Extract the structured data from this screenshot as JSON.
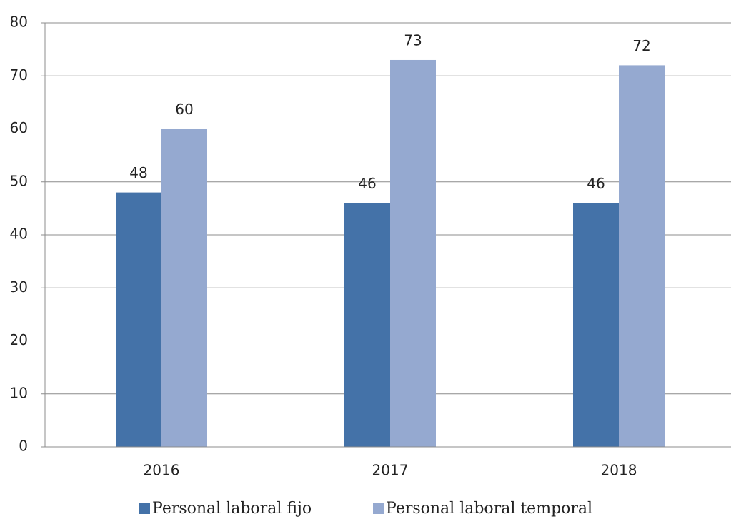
{
  "chart_data": {
    "type": "bar",
    "categories": [
      "2016",
      "2017",
      "2018"
    ],
    "series": [
      {
        "name": "Personal laboral fijo",
        "color": "#4472a8",
        "values": [
          48,
          46,
          46
        ]
      },
      {
        "name": "Personal laboral temporal",
        "color": "#95a9d0",
        "values": [
          60,
          73,
          72
        ]
      }
    ],
    "ylim": [
      0,
      80
    ],
    "yticks": [
      0,
      10,
      20,
      30,
      40,
      50,
      60,
      70,
      80
    ],
    "grid": true,
    "legend": "bottom"
  }
}
